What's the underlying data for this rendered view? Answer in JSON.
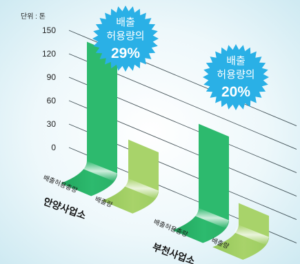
{
  "chart_data": {
    "type": "bar",
    "unit_label": "단위 : 톤",
    "y_ticks": [
      "150",
      "120",
      "90",
      "60",
      "30",
      "0"
    ],
    "ylim": [
      0,
      150
    ],
    "series": [
      {
        "name": "배출허용총량",
        "color": "#2dba6e"
      },
      {
        "name": "배출량",
        "color": "#a8d36a"
      }
    ],
    "groups": [
      {
        "name": "안양사업소",
        "values": [
          145,
          42
        ],
        "bar_labels": [
          "배출허용총량",
          "배출량"
        ],
        "badge": {
          "line1": "배출",
          "line2": "허용량의",
          "percent": "29%"
        }
      },
      {
        "name": "부천사업소",
        "values": [
          100,
          20
        ],
        "bar_labels": [
          "배출허용총량",
          "배출량"
        ],
        "badge": {
          "line1": "배출",
          "line2": "허용량의",
          "percent": "20%"
        }
      }
    ],
    "colors": {
      "background": "#dff2f7",
      "grid": "#23343a",
      "badge": "#2ab0e6",
      "badge_text": "#ffffff"
    }
  }
}
